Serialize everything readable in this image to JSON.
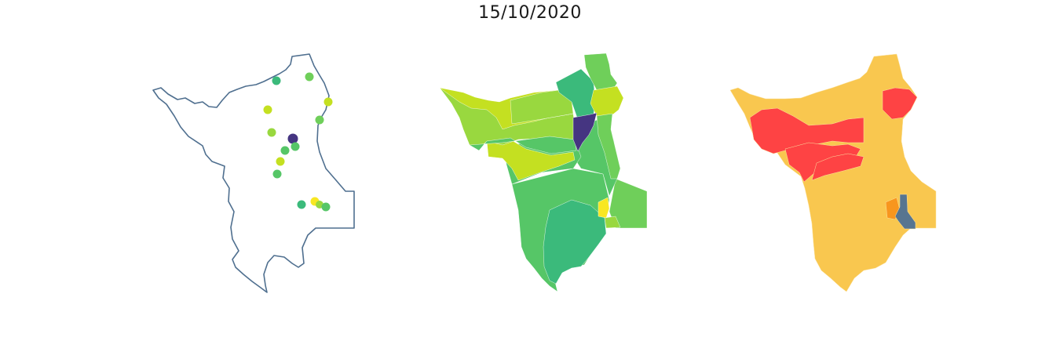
{
  "figure": {
    "title": "15/10/2020"
  },
  "colors": {
    "outline": "#4f6f8f",
    "viridis_dark": "#453581",
    "viridis_teal": "#3bba7b",
    "viridis_green": "#56c667",
    "viridis_lightgreen": "#6fcf5a",
    "viridis_lime": "#99d83f",
    "viridis_yellowgreen": "#c4e021",
    "viridis_yellow": "#f8e722",
    "risk_red": "#fe4344",
    "risk_yellow": "#f9c74f",
    "risk_orange": "#f8961e",
    "risk_blue": "#577590"
  },
  "maps": {
    "points_map": {
      "layer": "outline-with-point-markers"
    },
    "choropleth_continuous": {
      "palette": "viridis"
    },
    "choropleth_categorical": {
      "palette": "red-yellow-orange-blue"
    }
  }
}
